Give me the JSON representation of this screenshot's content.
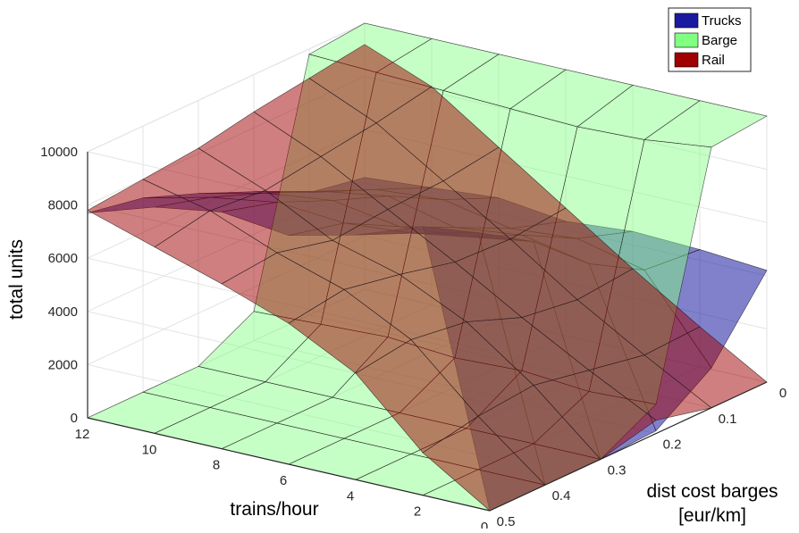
{
  "chart_data": {
    "type": "surface",
    "title": "",
    "zlabel": "total units",
    "xlabel": "trains/hour",
    "ylabel_line1": "dist cost barges",
    "ylabel_line2": "[eur/km]",
    "x_ticks": [
      "0",
      "2",
      "4",
      "6",
      "8",
      "10",
      "12"
    ],
    "y_ticks": [
      "0",
      "0.1",
      "0.2",
      "0.3",
      "0.4",
      "0.5"
    ],
    "z_ticks": [
      "0",
      "2000",
      "4000",
      "6000",
      "8000",
      "10000"
    ],
    "x_range": [
      0,
      12
    ],
    "y_range": [
      0,
      0.5
    ],
    "z_range": [
      0,
      10000
    ],
    "grid": true,
    "legend_position": "top-right",
    "series": [
      {
        "name": "Trucks",
        "color": "#1a1aa0",
        "opacity": 0.55,
        "rows": [
          {
            "y": 0.0,
            "z": [
              4200,
              4400,
              4500,
              4300,
              4600,
              4400,
              4200
            ]
          },
          {
            "y": 0.1,
            "z": [
              1500,
              4600,
              5200,
              5000,
              5500,
              5300,
              4600
            ]
          },
          {
            "y": 0.2,
            "z": [
              100,
              5800,
              6300,
              6000,
              6600,
              6200,
              5600
            ]
          },
          {
            "y": 0.3,
            "z": [
              0,
              7600,
              7200,
              7000,
              7400,
              7100,
              6500
            ]
          },
          {
            "y": 0.4,
            "z": [
              0,
              8900,
              8300,
              8100,
              8300,
              7900,
              7300
            ]
          },
          {
            "y": 0.5,
            "z": [
              0,
              10100,
              9200,
              8600,
              8900,
              8500,
              7700
            ]
          }
        ]
      },
      {
        "name": "Barge",
        "color": "#80ff80",
        "opacity": 0.45,
        "rows": [
          {
            "y": 0.0,
            "z": [
              10000,
              10000,
              10000,
              10000,
              10000,
              10000,
              10000
            ]
          },
          {
            "y": 0.1,
            "z": [
              9800,
              9500,
              9400,
              9500,
              9600,
              9700,
              9800
            ]
          },
          {
            "y": 0.2,
            "z": [
              1100,
              1000,
              1200,
              1100,
              1300,
              1200,
              1100
            ]
          },
          {
            "y": 0.3,
            "z": [
              0,
              0,
              0,
              0,
              0,
              0,
              0
            ]
          },
          {
            "y": 0.4,
            "z": [
              0,
              0,
              0,
              0,
              0,
              0,
              0
            ]
          },
          {
            "y": 0.5,
            "z": [
              0,
              0,
              0,
              0,
              0,
              0,
              0
            ]
          }
        ]
      },
      {
        "name": "Rail",
        "color": "#a00000",
        "opacity": 0.5,
        "rows": [
          {
            "y": 0.0,
            "z": [
              0,
              1500,
              3100,
              4800,
              6500,
              8200,
              9200
            ]
          },
          {
            "y": 0.1,
            "z": [
              0,
              1400,
              2900,
              4600,
              6200,
              7800,
              8900
            ]
          },
          {
            "y": 0.2,
            "z": [
              500,
              1800,
              3200,
              4700,
              6100,
              7500,
              8600
            ]
          },
          {
            "y": 0.3,
            "z": [
              0,
              2200,
              4000,
              5200,
              5900,
              7200,
              8200
            ]
          },
          {
            "y": 0.4,
            "z": [
              0,
              2000,
              4300,
              5600,
              6400,
              7400,
              8000
            ]
          },
          {
            "y": 0.5,
            "z": [
              0,
              1600,
              4000,
              5300,
              6200,
              7000,
              7800
            ]
          }
        ]
      }
    ]
  }
}
